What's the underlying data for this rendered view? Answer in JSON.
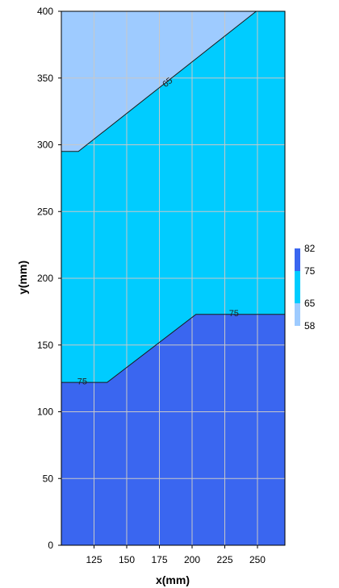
{
  "chart_data": {
    "type": "contour",
    "xlabel": "x(mm)",
    "ylabel": "y(mm)",
    "xlim": [
      100,
      271
    ],
    "ylim": [
      0,
      400
    ],
    "x_ticks": [
      "125",
      "150",
      "175",
      "200",
      "225",
      "250"
    ],
    "x_tick_values": [
      125,
      150,
      175,
      200,
      225,
      250
    ],
    "y_ticks": [
      "0",
      "50",
      "100",
      "150",
      "200",
      "250",
      "300",
      "350",
      "400"
    ],
    "y_tick_values": [
      0,
      50,
      100,
      150,
      200,
      250,
      300,
      350,
      400
    ],
    "grid": true,
    "regions": [
      {
        "range": [
          75,
          82
        ],
        "color": "#3a66f0",
        "polygon": [
          [
            100,
            0
          ],
          [
            271,
            0
          ],
          [
            271,
            173
          ],
          [
            203,
            173
          ],
          [
            135,
            122
          ],
          [
            100,
            122
          ]
        ]
      },
      {
        "range": [
          65,
          75
        ],
        "color": "#00ccff",
        "polygon": [
          [
            100,
            122
          ],
          [
            135,
            122
          ],
          [
            203,
            173
          ],
          [
            271,
            173
          ],
          [
            271,
            400
          ],
          [
            249,
            400
          ],
          [
            113,
            295
          ],
          [
            100,
            295
          ]
        ]
      },
      {
        "range": [
          58,
          65
        ],
        "color": "#9ecbff",
        "polygon": [
          [
            100,
            295
          ],
          [
            113,
            295
          ],
          [
            249,
            400
          ],
          [
            100,
            400
          ]
        ]
      }
    ],
    "contour_lines": [
      {
        "level": "75",
        "points": [
          [
            100,
            122
          ],
          [
            135,
            122
          ],
          [
            203,
            173
          ],
          [
            271,
            173
          ]
        ],
        "labels": [
          {
            "text": "75",
            "x": 116,
            "y": 123
          },
          {
            "text": "75",
            "x": 232,
            "y": 174
          }
        ]
      },
      {
        "level": "65",
        "points": [
          [
            100,
            295
          ],
          [
            113,
            295
          ],
          [
            249,
            400
          ]
        ],
        "labels": [
          {
            "text": "65",
            "x": 181,
            "y": 347
          }
        ]
      }
    ],
    "colorbar": {
      "labels": [
        "82",
        "75",
        "65",
        "58"
      ],
      "label_values": [
        82,
        75,
        65,
        58
      ],
      "range": [
        58,
        82
      ],
      "segments": [
        {
          "from": 75,
          "to": 82,
          "color": "#3a66f0"
        },
        {
          "from": 65,
          "to": 75,
          "color": "#00ccff"
        },
        {
          "from": 58,
          "to": 65,
          "color": "#9ecbff"
        }
      ]
    }
  }
}
